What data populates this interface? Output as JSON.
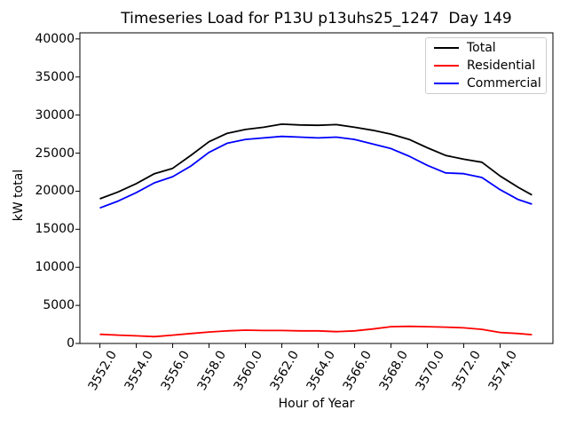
{
  "window": {
    "background": "#ffffff"
  },
  "chart_data": {
    "type": "line",
    "title": "Timeseries Load for P13U p13uhs25_1247  Day 149",
    "xlabel": "Hour of Year",
    "ylabel": "kW total",
    "xlim": [
      3550.9,
      3576.9
    ],
    "ylim": [
      0,
      40800
    ],
    "x_tick_labels": [
      "3552.0",
      "3554.0",
      "3556.0",
      "3558.0",
      "3560.0",
      "3562.0",
      "3564.0",
      "3566.0",
      "3568.0",
      "3570.0",
      "3572.0",
      "3574.0"
    ],
    "y_tick_labels": [
      "0",
      "5000",
      "10000",
      "15000",
      "20000",
      "25000",
      "30000",
      "35000",
      "40000"
    ],
    "grid": false,
    "legend_position": "upper right",
    "legend_border_color": "#cccccc",
    "x": [
      3552,
      3553,
      3554,
      3555,
      3556,
      3557,
      3558,
      3559,
      3560,
      3561,
      3562,
      3563,
      3564,
      3565,
      3566,
      3567,
      3568,
      3569,
      3570,
      3571,
      3572,
      3573,
      3574,
      3575,
      3575.75
    ],
    "series": [
      {
        "name": "Total",
        "color": "#000000",
        "values": [
          19000,
          19900,
          21000,
          22300,
          23000,
          24700,
          26500,
          27600,
          28100,
          28400,
          28800,
          28700,
          28650,
          28750,
          28400,
          28000,
          27500,
          26800,
          25700,
          24700,
          24200,
          23800,
          22000,
          20500,
          19500
        ]
      },
      {
        "name": "Residential",
        "color": "#ff0000",
        "values": [
          1200,
          1100,
          1000,
          900,
          1100,
          1300,
          1500,
          1650,
          1750,
          1700,
          1700,
          1650,
          1650,
          1550,
          1650,
          1900,
          2200,
          2250,
          2200,
          2150,
          2050,
          1850,
          1450,
          1300,
          1150
        ]
      },
      {
        "name": "Commercial",
        "color": "#0000ff",
        "values": [
          17800,
          18700,
          19800,
          21100,
          21900,
          23300,
          25100,
          26300,
          26800,
          27000,
          27200,
          27100,
          27000,
          27100,
          26800,
          26200,
          25600,
          24600,
          23400,
          22400,
          22300,
          21800,
          20200,
          18900,
          18300
        ]
      }
    ]
  }
}
